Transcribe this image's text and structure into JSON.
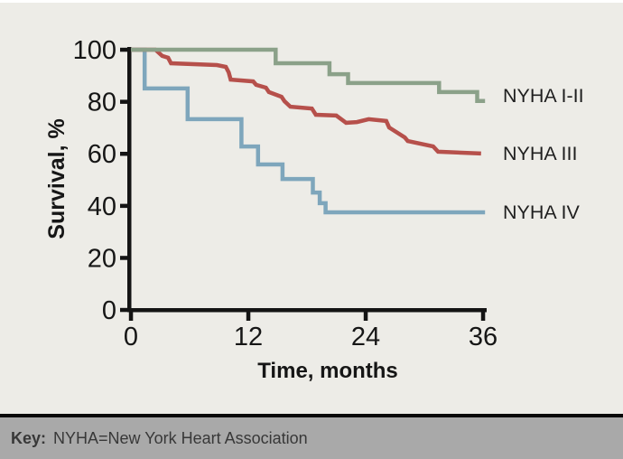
{
  "figure": {
    "background_color": "#edece7",
    "axis_color": "#141414",
    "key_bar": {
      "label": "Key:",
      "text": "NYHA=New York Heart Association",
      "bar_color": "#a9a9a9",
      "text_color": "#383838"
    }
  },
  "chart_data": {
    "type": "line",
    "subtype": "kaplan-meier-step-survival",
    "title": "",
    "xlabel": "Time, months",
    "ylabel": "Survival, %",
    "xlim": [
      0,
      36
    ],
    "ylim": [
      0,
      100
    ],
    "x_ticks": [
      0,
      12,
      24,
      36
    ],
    "y_ticks": [
      100,
      80,
      60,
      40,
      20,
      0
    ],
    "grid": false,
    "legend_position": "right-of-line-ends",
    "series": [
      {
        "name": "NYHA IV",
        "color": "#7ea6bc",
        "label_y": 37.5,
        "points": [
          [
            0,
            100
          ],
          [
            1.4,
            100
          ],
          [
            1.4,
            85.1
          ],
          [
            5.8,
            85.1
          ],
          [
            5.8,
            73.3
          ],
          [
            11.3,
            73.3
          ],
          [
            11.3,
            62.8
          ],
          [
            13,
            62.8
          ],
          [
            13,
            55.9
          ],
          [
            15.5,
            55.9
          ],
          [
            15.5,
            50.3
          ],
          [
            18.6,
            50.3
          ],
          [
            18.6,
            45.1
          ],
          [
            19.3,
            45.1
          ],
          [
            19.3,
            41
          ],
          [
            19.9,
            41
          ],
          [
            19.9,
            37.5
          ],
          [
            36.2,
            37.5
          ]
        ]
      },
      {
        "name": "NYHA III",
        "color": "#b6504b",
        "label_y": 60,
        "points": [
          [
            0,
            100
          ],
          [
            2.5,
            100
          ],
          [
            3.2,
            97.6
          ],
          [
            3.8,
            96.9
          ],
          [
            4.1,
            94.8
          ],
          [
            8.8,
            94.1
          ],
          [
            9.7,
            93.4
          ],
          [
            10,
            91.3
          ],
          [
            10.2,
            88.5
          ],
          [
            12.5,
            87.8
          ],
          [
            12.8,
            86.5
          ],
          [
            13.8,
            85.4
          ],
          [
            14.1,
            83.7
          ],
          [
            15.4,
            81.9
          ],
          [
            15.7,
            80.2
          ],
          [
            16.3,
            78.1
          ],
          [
            18.5,
            77.4
          ],
          [
            18.9,
            75
          ],
          [
            21,
            74.7
          ],
          [
            22,
            71.9
          ],
          [
            23.1,
            72.2
          ],
          [
            24.3,
            73.3
          ],
          [
            26.1,
            72.6
          ],
          [
            26.4,
            70.1
          ],
          [
            28,
            66.3
          ],
          [
            28.3,
            64.9
          ],
          [
            30.9,
            62.8
          ],
          [
            31.4,
            60.8
          ],
          [
            35.8,
            60.1
          ]
        ]
      },
      {
        "name": "NYHA I-II",
        "color": "#8ba189",
        "label_y": 82.3,
        "points": [
          [
            0,
            100
          ],
          [
            14.8,
            100
          ],
          [
            14.8,
            94.8
          ],
          [
            20.3,
            94.8
          ],
          [
            20.3,
            90.6
          ],
          [
            22.2,
            90.6
          ],
          [
            22.2,
            87.2
          ],
          [
            31.5,
            87.2
          ],
          [
            31.5,
            83.7
          ],
          [
            35.4,
            83.7
          ],
          [
            35.4,
            80.3
          ],
          [
            36.2,
            80.3
          ]
        ]
      }
    ]
  }
}
